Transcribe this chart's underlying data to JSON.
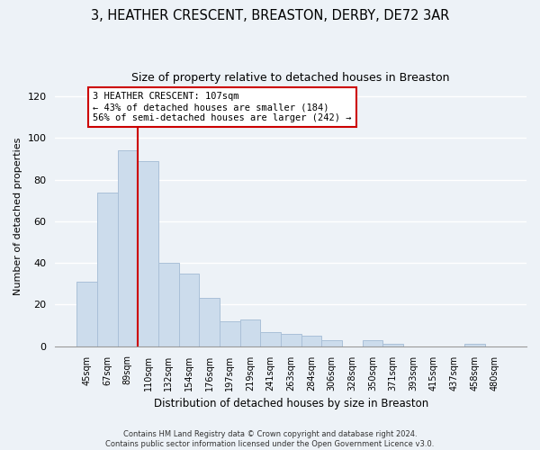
{
  "title": "3, HEATHER CRESCENT, BREASTON, DERBY, DE72 3AR",
  "subtitle": "Size of property relative to detached houses in Breaston",
  "xlabel": "Distribution of detached houses by size in Breaston",
  "ylabel": "Number of detached properties",
  "bar_labels": [
    "45sqm",
    "67sqm",
    "89sqm",
    "110sqm",
    "132sqm",
    "154sqm",
    "176sqm",
    "197sqm",
    "219sqm",
    "241sqm",
    "263sqm",
    "284sqm",
    "306sqm",
    "328sqm",
    "350sqm",
    "371sqm",
    "393sqm",
    "415sqm",
    "437sqm",
    "458sqm",
    "480sqm"
  ],
  "bar_values": [
    31,
    74,
    94,
    89,
    40,
    35,
    23,
    12,
    13,
    7,
    6,
    5,
    3,
    0,
    3,
    1,
    0,
    0,
    0,
    1,
    0
  ],
  "bar_color": "#ccdcec",
  "bar_edge_color": "#aac0d8",
  "vline_color": "#cc0000",
  "annotation_title": "3 HEATHER CRESCENT: 107sqm",
  "annotation_line1": "← 43% of detached houses are smaller (184)",
  "annotation_line2": "56% of semi-detached houses are larger (242) →",
  "annotation_box_color": "#ffffff",
  "annotation_box_edge": "#cc0000",
  "ylim": [
    0,
    125
  ],
  "yticks": [
    0,
    20,
    40,
    60,
    80,
    100,
    120
  ],
  "footer_line1": "Contains HM Land Registry data © Crown copyright and database right 2024.",
  "footer_line2": "Contains public sector information licensed under the Open Government Licence v3.0.",
  "bg_color": "#edf2f7",
  "plot_bg_color": "#edf2f7",
  "grid_color": "#ffffff"
}
